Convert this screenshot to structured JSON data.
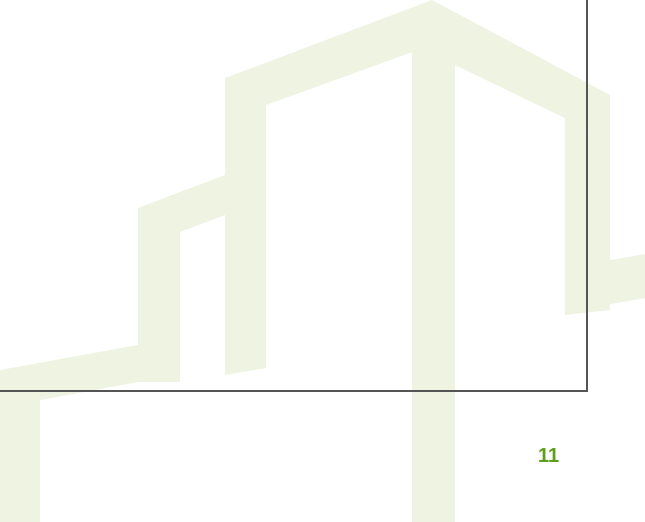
{
  "page": {
    "number": "11"
  },
  "colors": {
    "watermark": "#eef3e2",
    "page_number": "#5d9e1a",
    "frame_border": "#555555",
    "background": "#ffffff"
  },
  "watermark": {
    "icon": "building-outline-icon"
  }
}
